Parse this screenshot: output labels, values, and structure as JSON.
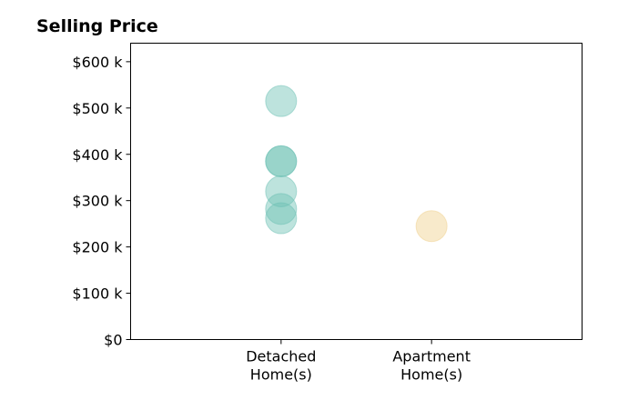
{
  "chart_data": {
    "type": "scatter",
    "title": "Selling Price",
    "xlabel": "",
    "ylabel": "",
    "categories": [
      "Detached\nHome(s)",
      "Apartment\nHome(s)"
    ],
    "xlim": [
      -1,
      2
    ],
    "ylim": [
      0,
      640000
    ],
    "yticks": [
      0,
      100000,
      200000,
      300000,
      400000,
      500000,
      600000
    ],
    "ytick_labels": [
      "$0",
      "$100 k",
      "$200 k",
      "$300 k",
      "$400 k",
      "$500 k",
      "$600 k"
    ],
    "grid": false,
    "series": [
      {
        "category": "Detached\nHome(s)",
        "color": "#6cc0b4",
        "values": [
          515000,
          385000,
          385000,
          320000,
          282000,
          262000
        ]
      },
      {
        "category": "Apartment\nHome(s)",
        "color": "#f0d08c",
        "values": [
          245000
        ]
      }
    ]
  }
}
